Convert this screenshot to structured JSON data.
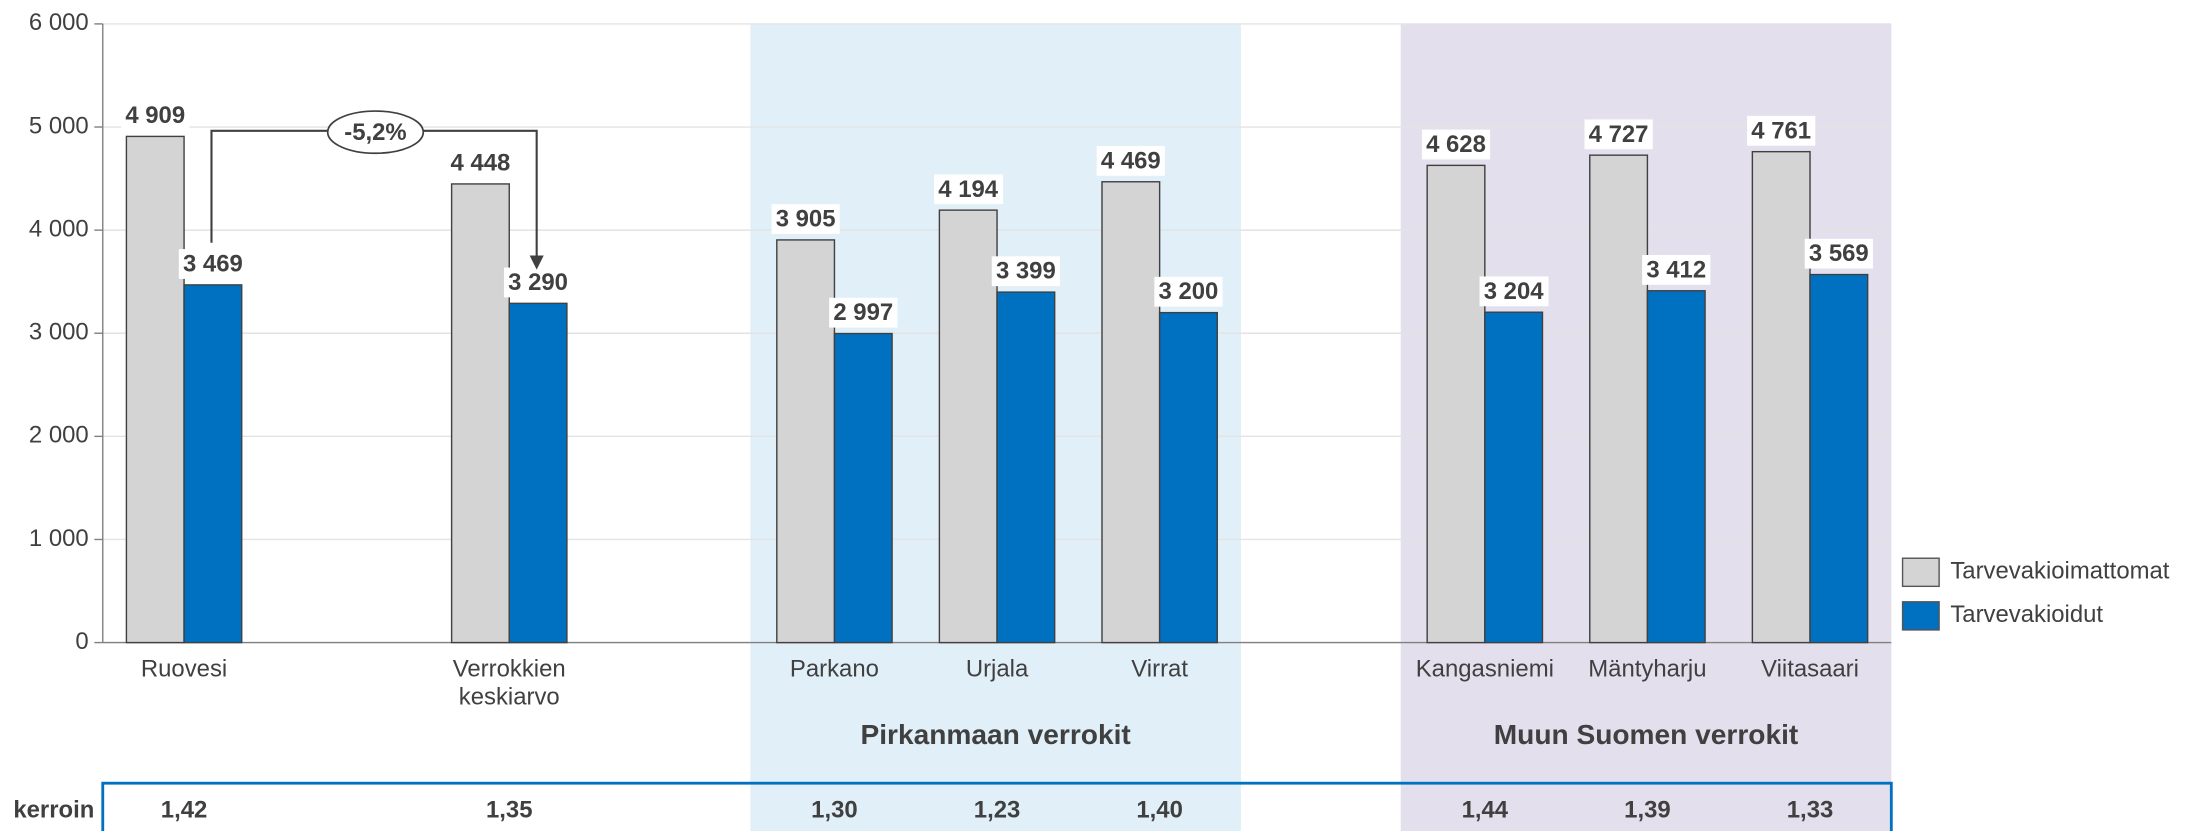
{
  "chart_data": {
    "type": "bar",
    "categories": [
      "Ruovesi",
      null,
      "Verrokkien keskiarvo",
      null,
      "Parkano",
      "Urjala",
      "Virrat",
      null,
      "Kangasniemi",
      "Mäntyharju",
      "Viitasaari"
    ],
    "series": [
      {
        "name": "Tarvevakioimattomat",
        "color": "#d4d4d4",
        "values": [
          4909,
          null,
          4448,
          null,
          3905,
          4194,
          4469,
          null,
          4628,
          4727,
          4761
        ],
        "value_labels": [
          "4 909",
          null,
          "4 448",
          null,
          "3 905",
          "4 194",
          "4 469",
          null,
          "4 628",
          "4 727",
          "4 761"
        ]
      },
      {
        "name": "Tarvevakioidut",
        "color": "#0070c0",
        "values": [
          3469,
          null,
          3290,
          null,
          2997,
          3399,
          3200,
          null,
          3204,
          3412,
          3569
        ],
        "value_labels": [
          "3 469",
          null,
          "3 290",
          null,
          "2 997",
          "3 399",
          "3 200",
          null,
          "3 204",
          "3 412",
          "3 569"
        ]
      }
    ],
    "ylim": [
      0,
      6000
    ],
    "yticks": [
      0,
      {
        "value": 1000,
        "label": "1 000"
      },
      {
        "value": 2000,
        "label": "2 000"
      },
      {
        "value": 3000,
        "label": "3 000"
      },
      {
        "value": 4000,
        "label": "4 000"
      },
      {
        "value": 5000,
        "label": "5 000"
      },
      {
        "value": 6000,
        "label": "6 000"
      }
    ],
    "grid": true,
    "legend": "right",
    "groups": [
      {
        "label": "Pirkanmaan verrokit",
        "color": "#e1eff8",
        "categories": [
          "Parkano",
          "Urjala",
          "Virrat"
        ]
      },
      {
        "label": "Muun Suomen verrokit",
        "color": "#e3dfed",
        "categories": [
          "Kangasniemi",
          "Mäntyharju",
          "Viitasaari"
        ]
      }
    ],
    "annotation": {
      "text": "-5,2%"
    },
    "coefficients": {
      "label": "kerroin",
      "values": [
        1.42,
        null,
        1.35,
        null,
        1.3,
        1.23,
        1.4,
        null,
        1.44,
        1.39,
        1.33
      ],
      "value_labels": [
        "1,42",
        null,
        "1,35",
        null,
        "1,30",
        "1,23",
        "1,40",
        null,
        "1,44",
        "1,39",
        "1,33"
      ]
    }
  }
}
